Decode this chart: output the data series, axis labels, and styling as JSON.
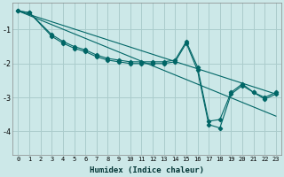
{
  "xlabel": "Humidex (Indice chaleur)",
  "bg_color": "#cce8e8",
  "grid_color": "#aacccc",
  "line_color": "#006666",
  "xlim": [
    -0.5,
    23.5
  ],
  "ylim": [
    -4.7,
    -0.2
  ],
  "yticks": [
    -4,
    -3,
    -2,
    -1
  ],
  "xticks": [
    0,
    1,
    2,
    3,
    4,
    5,
    6,
    7,
    8,
    9,
    10,
    11,
    12,
    13,
    14,
    15,
    16,
    17,
    18,
    19,
    20,
    21,
    22,
    23
  ],
  "series": [
    {
      "x": [
        0,
        23
      ],
      "y": [
        -0.45,
        -2.9
      ],
      "marker": false
    },
    {
      "x": [
        0,
        23
      ],
      "y": [
        -0.45,
        -3.55
      ],
      "marker": false
    },
    {
      "x": [
        0,
        1,
        3,
        4,
        5,
        6,
        7,
        8,
        9,
        10,
        11,
        12,
        13,
        14,
        15,
        16,
        17,
        18,
        19,
        20,
        21,
        22,
        23
      ],
      "y": [
        -0.45,
        -0.5,
        -1.15,
        -1.35,
        -1.5,
        -1.6,
        -1.75,
        -1.85,
        -1.9,
        -1.95,
        -1.95,
        -1.95,
        -1.95,
        -1.9,
        -1.35,
        -2.1,
        -3.7,
        -3.65,
        -2.85,
        -2.6,
        -2.85,
        -3.0,
        -2.85
      ],
      "marker": true
    },
    {
      "x": [
        0,
        1,
        3,
        4,
        5,
        6,
        7,
        8,
        9,
        10,
        11,
        12,
        13,
        14,
        15,
        16,
        17,
        18,
        19,
        20,
        21,
        22,
        23
      ],
      "y": [
        -0.45,
        -0.5,
        -1.2,
        -1.4,
        -1.55,
        -1.65,
        -1.8,
        -1.9,
        -1.95,
        -2.0,
        -2.0,
        -2.0,
        -2.0,
        -1.95,
        -1.4,
        -2.2,
        -3.8,
        -3.9,
        -2.9,
        -2.65,
        -2.85,
        -3.05,
        -2.9
      ],
      "marker": true
    }
  ]
}
